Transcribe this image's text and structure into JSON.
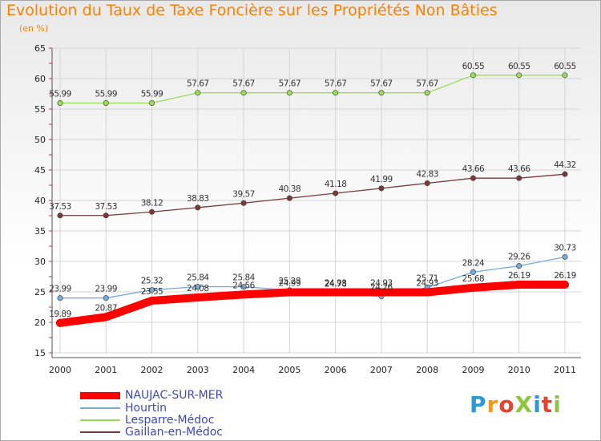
{
  "title": "Evolution du Taux de Taxe Foncière sur les Propriétés Non Bâties",
  "unit_label": "(en %)",
  "logo_text": "ProXiti",
  "colors": {
    "title": "#ff8000",
    "legend_text": "#3b49c0",
    "axis_text": "#222222"
  },
  "chart_data": {
    "type": "line",
    "title": "Evolution du Taux de Taxe Foncière sur les Propriétés Non Bâties",
    "ylabel": "(en %)",
    "xlabel": "",
    "categories": [
      "2000",
      "2001",
      "2002",
      "2003",
      "2004",
      "2005",
      "2006",
      "2007",
      "2008",
      "2009",
      "2010",
      "2011"
    ],
    "ylim": [
      15,
      65
    ],
    "yticks": [
      "15",
      "20",
      "25",
      "30",
      "35",
      "40",
      "45",
      "50",
      "55",
      "60",
      "65"
    ],
    "grid": true,
    "series": [
      {
        "name": "Lesparre-Médoc",
        "color": "#99dd55",
        "values": [
          55.99,
          55.99,
          55.99,
          57.67,
          57.67,
          57.67,
          57.67,
          57.67,
          57.67,
          60.55,
          60.55,
          60.55
        ],
        "labels": [
          "55.99",
          "55.99",
          "55.99",
          "57.67",
          "57.67",
          "57.67",
          "57.67",
          "57.67",
          "57.67",
          "60.55",
          "60.55",
          "60.55"
        ]
      },
      {
        "name": "Gaillan-en-Médoc",
        "color": "#7a3a3a",
        "values": [
          37.53,
          37.53,
          38.12,
          38.83,
          39.57,
          40.38,
          41.18,
          41.99,
          42.83,
          43.66,
          43.66,
          44.32
        ],
        "labels": [
          "37.53",
          "37.53",
          "38.12",
          "38.83",
          "39.57",
          "40.38",
          "41.18",
          "41.99",
          "42.83",
          "43.66",
          "43.66",
          "44.32"
        ]
      },
      {
        "name": "Hourtin",
        "color": "#77aadd",
        "values": [
          23.99,
          23.99,
          25.32,
          25.84,
          25.84,
          25.28,
          24.78,
          24.26,
          25.71,
          28.24,
          29.26,
          30.73
        ],
        "labels": [
          "23.99",
          "23.99",
          "25.32",
          "25.84",
          "25.84",
          "25.28",
          "24.78",
          "24.26",
          "25.71",
          "28.24",
          "29.26",
          "30.73"
        ]
      },
      {
        "name": "NAUJAC-SUR-MER",
        "color": "#ff0000",
        "values": [
          19.89,
          20.87,
          23.55,
          24.08,
          24.56,
          24.93,
          24.93,
          24.93,
          24.93,
          25.68,
          26.19,
          26.19
        ],
        "labels": [
          "19.89",
          "20.87",
          "23.55",
          "24.08",
          "24.56",
          "24.93",
          "24.93",
          "24.93",
          "24.93",
          "25.68",
          "26.19",
          "26.19"
        ]
      }
    ],
    "legend": [
      "NAUJAC-SUR-MER",
      "Hourtin",
      "Lesparre-Médoc",
      "Gaillan-en-Médoc"
    ],
    "legend_placement": "bottom-left"
  }
}
